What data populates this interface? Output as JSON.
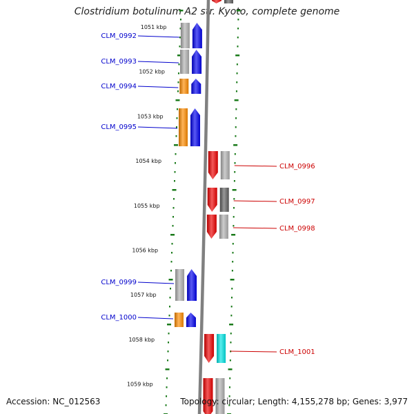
{
  "title": "Clostridium botulinum A2 str. Kyoto, complete genome",
  "footer": {
    "accession": "Accession: NC_012563",
    "summary": "Topology: circular; Length: 4,155,278 bp; Genes: 3,977"
  },
  "colors": {
    "left_label": "#0000cc",
    "right_label": "#cc0000",
    "tick": "#1a7a1a",
    "backbone": "#808080"
  },
  "ruler": [
    {
      "label": "1051 kbp"
    },
    {
      "label": "1052 kbp"
    },
    {
      "label": "1053 kbp"
    },
    {
      "label": "1054 kbp"
    },
    {
      "label": "1055 kbp"
    },
    {
      "label": "1056 kbp"
    },
    {
      "label": "1057 kbp"
    },
    {
      "label": "1058 kbp"
    },
    {
      "label": "1059 kbp"
    }
  ],
  "genes": [
    {
      "name": "CLM_0992",
      "side": "left",
      "cog": "#b0b0b0",
      "arrow": "#0000ee",
      "dir": "up"
    },
    {
      "name": "CLM_0993",
      "side": "left",
      "cog": "#b0b0b0",
      "arrow": "#0000ee",
      "dir": "up"
    },
    {
      "name": "CLM_0994",
      "side": "left",
      "cog": "#ff8c00",
      "arrow": "#0000ee",
      "dir": "up"
    },
    {
      "name": "CLM_0995",
      "side": "left",
      "cog": "#ff8c00",
      "arrow": "#0000ee",
      "dir": "up"
    },
    {
      "name": "CLM_0996",
      "side": "right",
      "cog": "#b0b0b0",
      "arrow": "#ee0000",
      "dir": "down"
    },
    {
      "name": "CLM_0997",
      "side": "right",
      "cog": "#606060",
      "arrow": "#ee0000",
      "dir": "down"
    },
    {
      "name": "CLM_0998",
      "side": "right",
      "cog": "#b0b0b0",
      "arrow": "#ee0000",
      "dir": "down"
    },
    {
      "name": "CLM_0999",
      "side": "left",
      "cog": "#b0b0b0",
      "arrow": "#0000ee",
      "dir": "up"
    },
    {
      "name": "CLM_1000",
      "side": "left",
      "cog": "#ff8c00",
      "arrow": "#0000ee",
      "dir": "up"
    },
    {
      "name": "CLM_1001",
      "side": "right",
      "cog": "#00e5e5",
      "arrow": "#ee0000",
      "dir": "down"
    }
  ],
  "partial_genes": [
    {
      "side": "right",
      "cog": "#606060",
      "arrow": "#ee0000"
    },
    {
      "side": "right",
      "cog": "#b0b0b0",
      "arrow": "#ee0000"
    }
  ]
}
